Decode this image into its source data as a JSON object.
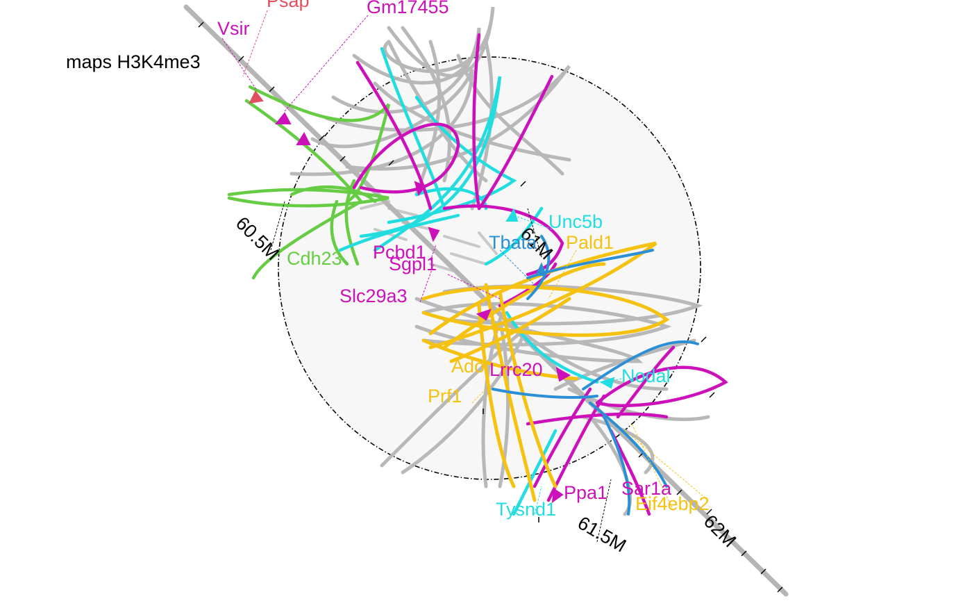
{
  "title": "",
  "track_label": "maps H3K4me3",
  "axis_ticks": [
    "60.5M",
    "61M",
    "61.5M",
    "62M"
  ],
  "colors": {
    "green": "#66cc44",
    "cyan": "#22dde0",
    "magenta": "#cc11bb",
    "yellow": "#f5c211",
    "blue": "#2b8fd6",
    "red": "#e0505f",
    "gray": "#b5b5b5",
    "black": "#000000"
  },
  "genes": [
    {
      "name": "Psap",
      "color": "red"
    },
    {
      "name": "Gm17455",
      "color": "magenta"
    },
    {
      "name": "Vsir",
      "color": "magenta"
    },
    {
      "name": "Unc5b",
      "color": "cyan"
    },
    {
      "name": "Tbata",
      "color": "blue"
    },
    {
      "name": "Pald1",
      "color": "yellow"
    },
    {
      "name": "Cdh23",
      "color": "green"
    },
    {
      "name": "Pcbd1",
      "color": "magenta"
    },
    {
      "name": "Sgpl1",
      "color": "magenta"
    },
    {
      "name": "Slc29a3",
      "color": "magenta"
    },
    {
      "name": "Nodal",
      "color": "cyan"
    },
    {
      "name": "Lrrc20",
      "color": "magenta"
    },
    {
      "name": "Ado",
      "color": "yellow"
    },
    {
      "name": "Prf1",
      "color": "yellow"
    },
    {
      "name": "Ppa1",
      "color": "magenta"
    },
    {
      "name": "Sar1a",
      "color": "magenta"
    },
    {
      "name": "Eif4ebp2",
      "color": "yellow"
    },
    {
      "name": "Tysnd1",
      "color": "cyan"
    }
  ]
}
